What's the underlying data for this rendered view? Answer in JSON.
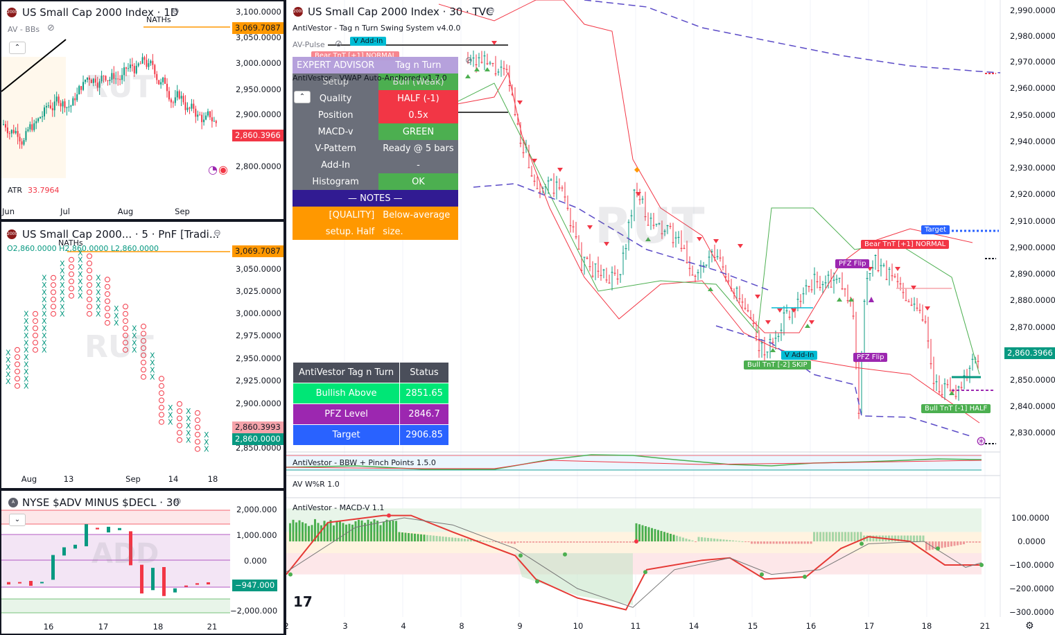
{
  "panes": {
    "daily": {
      "title": "US Small Cap 2000 Index · 1D",
      "subtitle": "AV - BBs",
      "watermark": "RUT",
      "nath_label": "NATHs",
      "nath_price": "3,069.7087",
      "last_price": "2,860.3966",
      "atr_label": "ATR",
      "atr_value": "33.7964",
      "y_labels": [
        "3,100.0000",
        "3,050.0000",
        "3,000.0000",
        "2,950.0000",
        "2,900.0000",
        "2,800.0000"
      ],
      "x_labels": [
        "Jun",
        "Jul",
        "Aug",
        "Sep"
      ]
    },
    "pnf": {
      "title": "US Small Cap 2000... · 5 · PnF [Tradi...",
      "ohlc": "O2,860.0000  H2,860.0000  L2,860.0000",
      "watermark": "RUT",
      "nath_label": "NATHs",
      "nath_price": "3,069.7087",
      "price_a": "2,860.3993",
      "price_b": "2,860.0000",
      "y_labels": [
        "3,050.0000",
        "3,025.0000",
        "3,000.0000",
        "2,975.0000",
        "2,950.0000",
        "2,925.0000",
        "2,900.0000",
        "2,850.0000"
      ],
      "x_labels": [
        "Aug",
        "13",
        "Sep",
        "14",
        "18"
      ]
    },
    "add": {
      "title": "NYSE $ADV MINUS $DECL · 30",
      "watermark": "ADD",
      "last_value": "−947.000",
      "y_labels": [
        "2,000.000",
        "1,000.000",
        "0.000",
        "−2,000.000"
      ],
      "x_labels": [
        "16",
        "17",
        "18",
        "21"
      ]
    },
    "main": {
      "title": "US Small Cap 2000 Index · 30 · TVC",
      "watermark": "RUT",
      "indicator1": "AntiVestor - Tag n Turn Swing System v4.0.0",
      "indicator2": "AV-Pulse",
      "indicator3": "AntiVestor - VWAP Auto-Anchored v1.7.0",
      "last_price": "2,860.3966",
      "y_labels": [
        "2,990.0000",
        "2,980.0000",
        "2,970.0000",
        "2,960.0000",
        "2,950.0000",
        "2,940.0000",
        "2,930.0000",
        "2,920.0000",
        "2,910.0000",
        "2,900.0000",
        "2,890.0000",
        "2,880.0000",
        "2,870.0000",
        "2,850.0000",
        "2,840.0000",
        "2,830.0000"
      ],
      "x_labels": [
        "2",
        "3",
        "4",
        "8",
        "9",
        "10",
        "11",
        "14",
        "15",
        "16",
        "17",
        "18",
        "21"
      ],
      "markers": {
        "v_add_in_top": "V Add-In",
        "bear_top": "Bear TnT [+1] NORMAL",
        "target": "Target",
        "bear_normal": "Bear TnT [+1] NORMAL",
        "pfz_flip_1": "PFZ Flip",
        "pfz_flip_2": "PFZ Flip",
        "v_add_in": "V Add-In",
        "bull_skip": "Bull TnT [-2] SKIP",
        "bull_half": "Bull TnT [-1] HALF"
      }
    },
    "bbw": {
      "title": "AntiVestor - BBW + Pinch Points 1.5.0"
    },
    "wr": {
      "title": "AV W%R 1.0"
    },
    "macd": {
      "title": "AntiVestor - MACD-V 1.1",
      "y_labels": [
        "100.0000",
        "0.0000",
        "−100.0000",
        "−200.0000",
        "−300.0000"
      ]
    }
  },
  "expert_advisor": {
    "header_left": "EXPERT ADVISOR",
    "header_right": "Tag n Turn",
    "setup_left": "Setup",
    "setup_right": "Bull (Weak)",
    "rows": [
      {
        "label": "Quality",
        "value": "HALF (-1)",
        "color": "#f23645"
      },
      {
        "label": "Position",
        "value": "0.5x",
        "color": "#f23645"
      },
      {
        "label": "MACD-v",
        "value": "GREEN",
        "color": "#4caf50"
      },
      {
        "label": "V-Pattern",
        "value": "Ready @ 5 bars",
        "color": "#6b6f7a"
      },
      {
        "label": "Add-In",
        "value": "-",
        "color": "#6b6f7a"
      },
      {
        "label": "Histogram",
        "value": "OK",
        "color": "#4caf50"
      }
    ],
    "notes_header": "— NOTES —",
    "note_left_1": "[QUALITY]",
    "note_right_1": "Below-average",
    "note_left_2": "setup. Half",
    "note_right_2": "size."
  },
  "status_table": {
    "header_left": "AntiVestor Tag n Turn",
    "header_right": "Status",
    "rows": [
      {
        "label": "Bullish Above",
        "value": "2851.65",
        "color": "#00e676"
      },
      {
        "label": "PFZ Level",
        "value": "2846.7",
        "color": "#9c27b0"
      },
      {
        "label": "Target",
        "value": "2906.85",
        "color": "#2962ff"
      }
    ]
  },
  "colors": {
    "up": "#089981",
    "down": "#f23645",
    "orange": "#ff9800",
    "purple": "#9c27b0",
    "blue": "#2962ff",
    "bb_red": "#f23645",
    "bb_green": "#4caf50",
    "vwap": "#5b4bc7"
  }
}
